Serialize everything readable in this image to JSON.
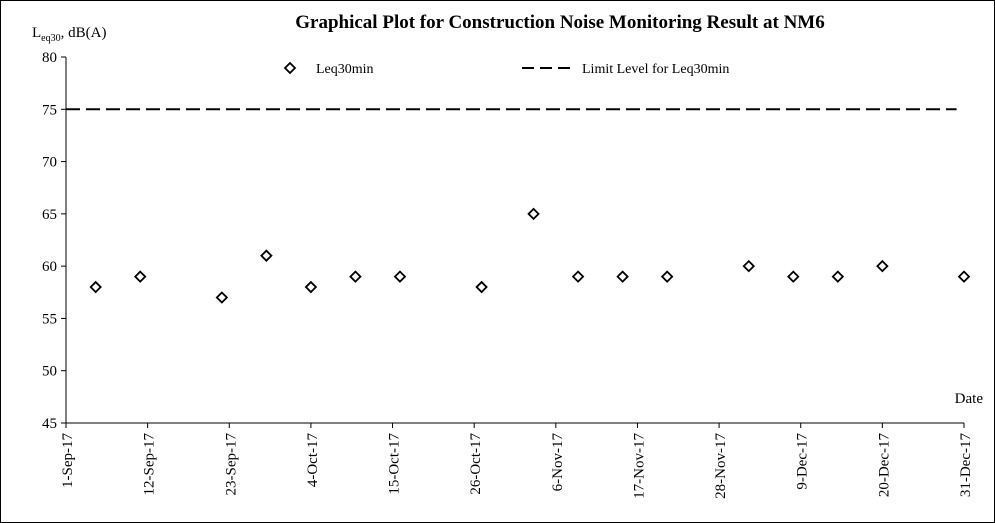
{
  "chart_data": {
    "type": "scatter",
    "title": "Graphical Plot for Construction Noise Monitoring Result at NM6",
    "ylabel": {
      "main": "L",
      "sub": "eq30",
      "rest": ", dB(A)"
    },
    "xlabel": "Date",
    "ylim": [
      45,
      80
    ],
    "yticks": [
      45,
      50,
      55,
      60,
      65,
      70,
      75,
      80
    ],
    "xlim": [
      "2017-09-01",
      "2017-12-31"
    ],
    "xticks": [
      {
        "date": "2017-09-01",
        "label": "1-Sep-17"
      },
      {
        "date": "2017-09-12",
        "label": "12-Sep-17"
      },
      {
        "date": "2017-09-23",
        "label": "23-Sep-17"
      },
      {
        "date": "2017-10-04",
        "label": "4-Oct-17"
      },
      {
        "date": "2017-10-15",
        "label": "15-Oct-17"
      },
      {
        "date": "2017-10-26",
        "label": "26-Oct-17"
      },
      {
        "date": "2017-11-06",
        "label": "6-Nov-17"
      },
      {
        "date": "2017-11-17",
        "label": "17-Nov-17"
      },
      {
        "date": "2017-11-28",
        "label": "28-Nov-17"
      },
      {
        "date": "2017-12-09",
        "label": "9-Dec-17"
      },
      {
        "date": "2017-12-20",
        "label": "20-Dec-17"
      },
      {
        "date": "2017-12-31",
        "label": "31-Dec-17"
      }
    ],
    "series": [
      {
        "name": "Leq30min",
        "marker": "diamond",
        "color": "#000000",
        "points": [
          {
            "x": "2017-09-05",
            "y": 58
          },
          {
            "x": "2017-09-11",
            "y": 59
          },
          {
            "x": "2017-09-22",
            "y": 57
          },
          {
            "x": "2017-09-28",
            "y": 61
          },
          {
            "x": "2017-10-04",
            "y": 58
          },
          {
            "x": "2017-10-10",
            "y": 59
          },
          {
            "x": "2017-10-16",
            "y": 59
          },
          {
            "x": "2017-10-27",
            "y": 58
          },
          {
            "x": "2017-11-03",
            "y": 65
          },
          {
            "x": "2017-11-09",
            "y": 59
          },
          {
            "x": "2017-11-15",
            "y": 59
          },
          {
            "x": "2017-11-21",
            "y": 59
          },
          {
            "x": "2017-12-02",
            "y": 60
          },
          {
            "x": "2017-12-08",
            "y": 59
          },
          {
            "x": "2017-12-14",
            "y": 59
          },
          {
            "x": "2017-12-20",
            "y": 60
          },
          {
            "x": "2017-12-31",
            "y": 59
          }
        ]
      },
      {
        "name": "Limit Level for Leq30min",
        "style": "dashed-line",
        "color": "#000000",
        "value": 75
      }
    ],
    "legend": "top",
    "grid": false
  }
}
